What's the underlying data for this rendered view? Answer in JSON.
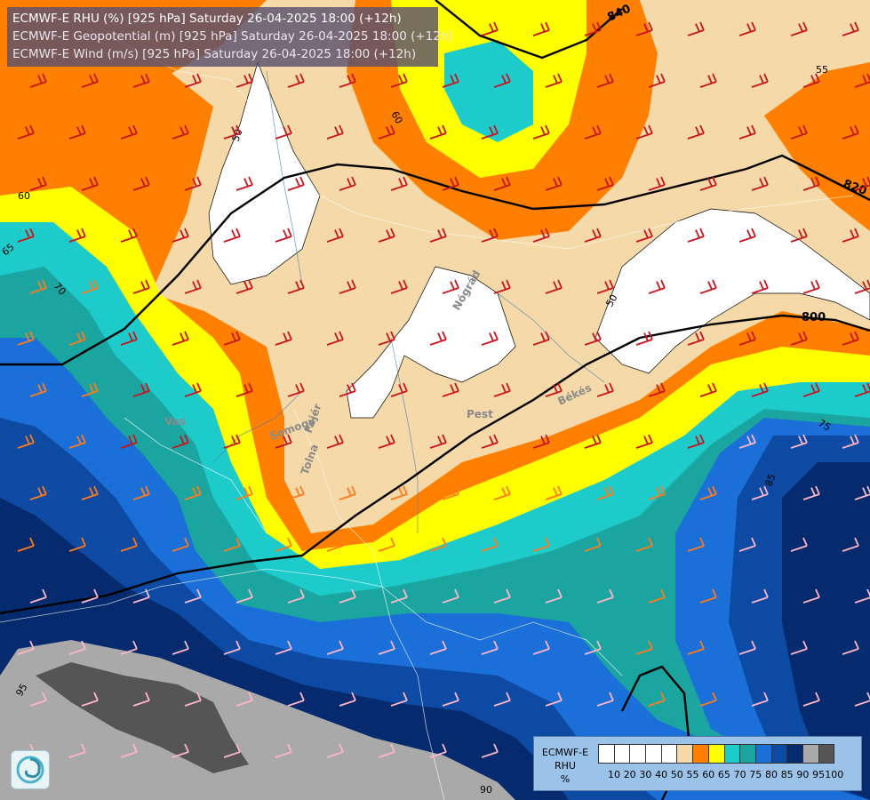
{
  "title": {
    "line1": "ECMWF-E RHU (%) [925 hPa] Saturday 26-04-2025 18:00 (+12h)",
    "line2": "ECMWF-E Geopotential (m) [925 hPa] Saturday 26-04-2025 18:00 (+12h)",
    "line3": "ECMWF-E Wind (m/s) [925 hPa] Saturday 26-04-2025 18:00 (+12h)"
  },
  "legend": {
    "model": "ECMWF-E",
    "variable": "RHU",
    "unit": "%",
    "levels": [
      "10",
      "20",
      "30",
      "40",
      "50",
      "55",
      "60",
      "65",
      "70",
      "75",
      "80",
      "85",
      "90",
      "95",
      "100"
    ],
    "colors": [
      "#ffffff",
      "#ffffff",
      "#ffffff",
      "#ffffff",
      "#ffffff",
      "#f5d9a8",
      "#ff8000",
      "#ffff00",
      "#1ecbcb",
      "#1ba5a0",
      "#1a6fd8",
      "#0d4aa3",
      "#052a6e",
      "#a9a9a9",
      "#555555"
    ]
  },
  "geopotential_labels": [
    "840",
    "820",
    "800"
  ],
  "rhu_contour_labels": [
    "50",
    "55",
    "60",
    "65",
    "70",
    "75",
    "85",
    "90",
    "95"
  ],
  "place_labels": [
    "Nógrád",
    "Pest",
    "Békés",
    "Vas",
    "Somogy",
    "Fejér",
    "Tolna"
  ],
  "icons": {
    "logo": "meteo-swirl-icon",
    "wind": "wind-barb-icon"
  }
}
